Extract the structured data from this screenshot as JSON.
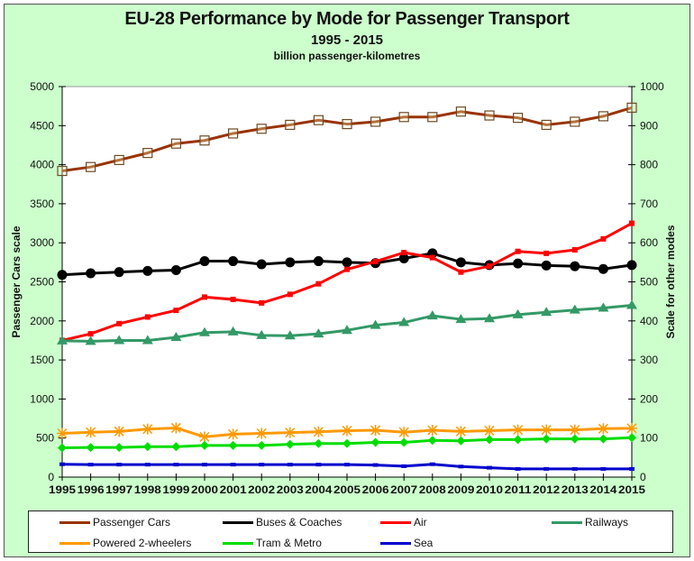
{
  "chart_data": {
    "type": "line",
    "title": "EU-28 Performance by Mode for Passenger Transport",
    "subtitle": "1995 - 2015",
    "units": "billion passenger-kilometres",
    "x": [
      1995,
      1996,
      1997,
      1998,
      1999,
      2000,
      2001,
      2002,
      2003,
      2004,
      2005,
      2006,
      2007,
      2008,
      2009,
      2010,
      2011,
      2012,
      2013,
      2014,
      2015
    ],
    "ylabel_left": "Passenger Cars scale",
    "ylabel_right": "Scale for other modes",
    "ylim_left": [
      0,
      5000
    ],
    "ylim_right": [
      0,
      1000
    ],
    "yticks_left": [
      0,
      500,
      1000,
      1500,
      2000,
      2500,
      3000,
      3500,
      4000,
      4500,
      5000
    ],
    "yticks_right": [
      0,
      100,
      200,
      300,
      400,
      500,
      600,
      700,
      800,
      900,
      1000
    ],
    "grid": false,
    "legend_position": "bottom",
    "series": [
      {
        "name": "Passenger Cars",
        "axis": "left",
        "color": "#993300",
        "marker": "square-open",
        "values": [
          3920,
          3970,
          4060,
          4150,
          4270,
          4310,
          4400,
          4460,
          4510,
          4570,
          4520,
          4550,
          4610,
          4610,
          4680,
          4630,
          4600,
          4510,
          4550,
          4620,
          4730
        ]
      },
      {
        "name": "Buses & Coaches",
        "axis": "right",
        "color": "#000000",
        "marker": "circle",
        "values": [
          518,
          522,
          525,
          528,
          530,
          553,
          553,
          545,
          550,
          553,
          550,
          548,
          560,
          573,
          550,
          543,
          547,
          542,
          540,
          533,
          543
        ]
      },
      {
        "name": "Air",
        "axis": "right",
        "color": "#ff0000",
        "marker": "square",
        "values": [
          350,
          367,
          393,
          410,
          427,
          461,
          455,
          446,
          468,
          495,
          532,
          552,
          575,
          562,
          525,
          540,
          578,
          573,
          582,
          610,
          650
        ]
      },
      {
        "name": "Railways",
        "axis": "right",
        "color": "#339966",
        "marker": "triangle",
        "values": [
          349,
          348,
          350,
          350,
          358,
          370,
          372,
          363,
          362,
          367,
          376,
          389,
          396,
          413,
          404,
          406,
          416,
          422,
          428,
          433,
          440
        ]
      },
      {
        "name": "Powered 2-wheelers",
        "axis": "right",
        "color": "#ff9900",
        "marker": "star",
        "values": [
          112,
          115,
          117,
          123,
          126,
          103,
          110,
          112,
          114,
          116,
          119,
          120,
          115,
          120,
          117,
          119,
          121,
          121,
          121,
          124,
          125
        ]
      },
      {
        "name": "Tram & Metro",
        "axis": "right",
        "color": "#00dd00",
        "marker": "diamond",
        "values": [
          75,
          76,
          76,
          78,
          78,
          81,
          81,
          81,
          84,
          86,
          86,
          89,
          89,
          94,
          93,
          96,
          96,
          98,
          98,
          98,
          101
        ]
      },
      {
        "name": "Sea",
        "axis": "right",
        "color": "#0000cc",
        "marker": "dash",
        "values": [
          33,
          32,
          32,
          32,
          32,
          32,
          32,
          32,
          32,
          32,
          32,
          31,
          28,
          33,
          27,
          24,
          21,
          21,
          21,
          21,
          21
        ]
      }
    ]
  }
}
